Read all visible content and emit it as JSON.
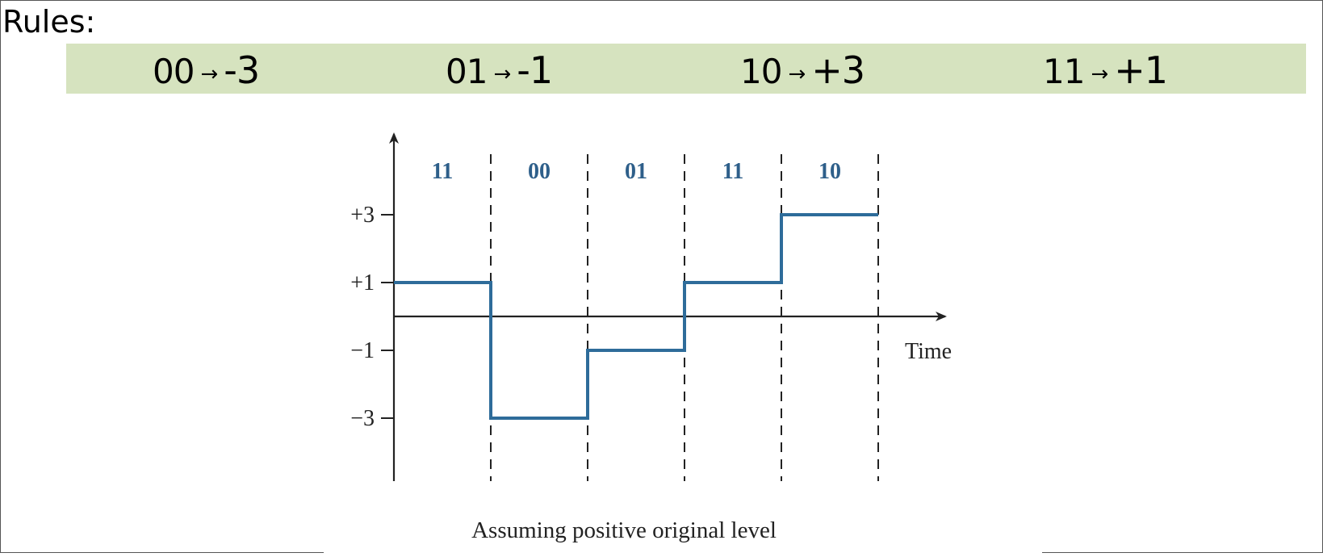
{
  "header": {
    "label": "Rules:"
  },
  "rules": [
    {
      "bits": "00",
      "arrow": "→",
      "level": "-3"
    },
    {
      "bits": "01",
      "arrow": "→",
      "level": "-1"
    },
    {
      "bits": "10",
      "arrow": "→",
      "level": "+3"
    },
    {
      "bits": "11",
      "arrow": "→",
      "level": "+1"
    }
  ],
  "diagram": {
    "bit_groups": [
      "11",
      "00",
      "01",
      "11",
      "10"
    ],
    "levels": [
      1,
      -3,
      -1,
      1,
      3
    ],
    "y_ticks": [
      "+3",
      "+1",
      "−1",
      "−3"
    ],
    "x_axis_label": "Time",
    "caption": "Assuming positive original level",
    "colors": {
      "signal": "#2e6c9a",
      "bits": "#2e5f8a",
      "axis": "#222222"
    }
  }
}
